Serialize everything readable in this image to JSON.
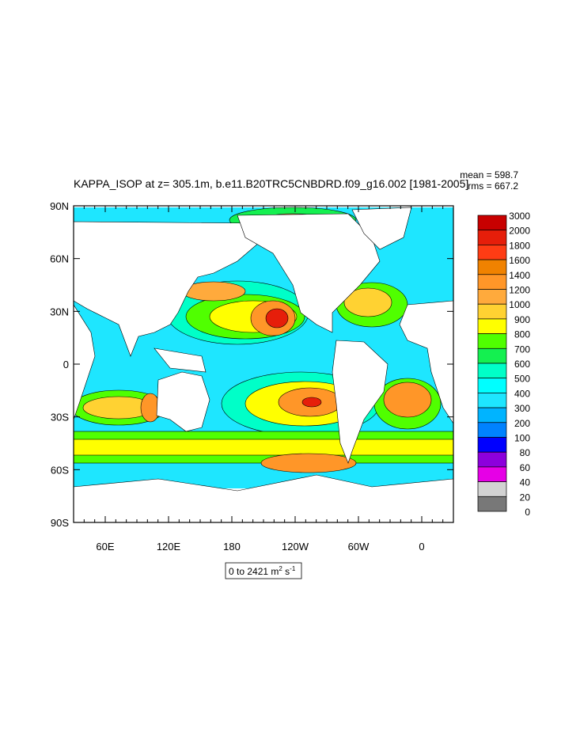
{
  "chart_data": {
    "type": "heatmap",
    "title": "KAPPA_ISOP at z= 305.1m, b.e11.B20TRC5CNBDRD.f09_g16.002 [1981-2005]",
    "stats": {
      "mean": "mean = 598.7",
      "rms": "rms = 667.2"
    },
    "range_label": {
      "text": "0 to 2421 m",
      "sup1": "2",
      "mid": " s",
      "sup2": "-1"
    },
    "y_ticks": [
      "90N",
      "60N",
      "30N",
      "0",
      "30S",
      "60S",
      "90S"
    ],
    "x_ticks": [
      "60E",
      "120E",
      "180",
      "120W",
      "60W",
      "0"
    ],
    "lon_range": [
      30,
      390
    ],
    "lat_range": [
      -90,
      90
    ],
    "colorbar": {
      "labels": [
        "3000",
        "2000",
        "1800",
        "1600",
        "1400",
        "1200",
        "1000",
        "900",
        "800",
        "700",
        "600",
        "500",
        "400",
        "300",
        "200",
        "100",
        "80",
        "60",
        "40",
        "20",
        "0"
      ],
      "colors": [
        "#c80000",
        "#e61e0a",
        "#ff3c14",
        "#f08200",
        "#ff9628",
        "#ffaa3c",
        "#ffd232",
        "#ffff00",
        "#50ff00",
        "#14f050",
        "#00ffc8",
        "#00ffff",
        "#1ee6ff",
        "#00b4ff",
        "#0082ff",
        "#0000ff",
        "#8c00dc",
        "#e600e6",
        "#d2d2d2",
        "#787878"
      ]
    },
    "legend_placement": "right"
  }
}
